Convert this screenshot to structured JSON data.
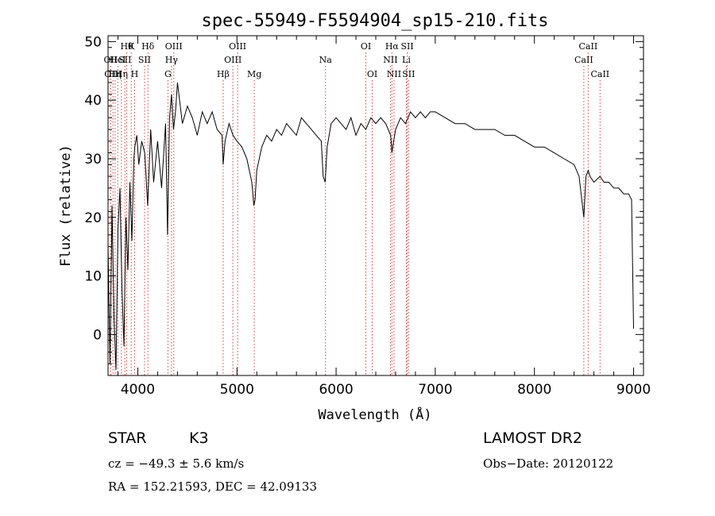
{
  "chart_data": {
    "type": "line",
    "title": "spec-55949-F5594904_sp15-210.fits",
    "xlabel": "Wavelength (Å)",
    "ylabel": "Flux (relative)",
    "xlim": [
      3700,
      9100
    ],
    "ylim": [
      -7,
      51
    ],
    "x_ticks": [
      4000,
      5000,
      6000,
      7000,
      8000,
      9000
    ],
    "y_ticks": [
      0,
      10,
      20,
      30,
      40,
      50
    ],
    "grid": false,
    "line_color": "#000000",
    "marker_color": "#d04040",
    "series": [
      {
        "x": [
          3700,
          3720,
          3740,
          3760,
          3780,
          3800,
          3820,
          3840,
          3860,
          3880,
          3900,
          3920,
          3940,
          3960,
          3970,
          3990,
          4010,
          4040,
          4070,
          4100,
          4130,
          4160,
          4200,
          4240,
          4280,
          4300,
          4320,
          4340,
          4360,
          4380,
          4400,
          4450,
          4500,
          4550,
          4600,
          4650,
          4700,
          4750,
          4800,
          4850,
          4861,
          4880,
          4920,
          4960,
          5000,
          5050,
          5100,
          5150,
          5170,
          5183,
          5200,
          5250,
          5300,
          5350,
          5400,
          5450,
          5500,
          5550,
          5600,
          5650,
          5700,
          5750,
          5800,
          5850,
          5870,
          5890,
          5910,
          5950,
          6000,
          6050,
          6100,
          6150,
          6200,
          6250,
          6300,
          6350,
          6400,
          6450,
          6500,
          6550,
          6563,
          6580,
          6600,
          6650,
          6700,
          6750,
          6800,
          6850,
          6900,
          6950,
          7000,
          7100,
          7200,
          7300,
          7400,
          7500,
          7600,
          7700,
          7800,
          7900,
          8000,
          8100,
          8200,
          8300,
          8400,
          8450,
          8498,
          8520,
          8542,
          8560,
          8600,
          8662,
          8700,
          8750,
          8800,
          8850,
          8900,
          8950,
          8980,
          9000
        ],
        "y": [
          15,
          -5,
          22,
          3,
          -6,
          18,
          25,
          8,
          -2,
          20,
          11,
          26,
          16,
          30,
          32,
          34,
          29,
          33,
          31,
          22,
          35,
          26,
          33,
          25,
          36,
          17,
          37,
          41,
          35,
          38,
          43,
          36,
          39,
          37,
          34,
          38,
          36,
          38,
          35,
          34,
          29,
          33,
          36,
          34,
          33,
          32,
          30,
          26,
          22,
          23,
          28,
          32,
          34,
          33,
          35,
          34,
          36,
          35,
          34,
          37,
          36,
          35,
          34,
          33,
          27,
          26,
          32,
          36,
          37,
          36,
          35,
          37,
          34,
          36,
          35,
          37,
          36,
          37,
          36,
          34,
          31,
          33,
          35,
          37,
          36,
          38,
          37,
          38,
          37,
          38,
          38,
          37,
          36,
          36,
          35,
          35,
          35,
          34,
          34,
          33,
          32,
          32,
          31,
          30,
          29,
          27,
          20,
          27,
          28,
          27,
          26,
          27,
          26,
          26,
          25,
          25,
          24,
          24,
          23,
          1
        ]
      }
    ],
    "line_markers": [
      {
        "x": 3727,
        "label": "OII",
        "row": 1
      },
      {
        "x": 3750,
        "label": "OIII",
        "row": 2
      },
      {
        "x": 3771,
        "label": "Hη",
        "row": 2
      },
      {
        "x": 3798,
        "label": "HeI",
        "row": 1
      },
      {
        "x": 3835,
        "label": "Hη",
        "row": 2
      },
      {
        "x": 3870,
        "label": "SII",
        "row": 1
      },
      {
        "x": 3889,
        "label": "Hθ",
        "row": 0
      },
      {
        "x": 3934,
        "label": "K",
        "row": 0
      },
      {
        "x": 3968,
        "label": "H",
        "row": 2
      },
      {
        "x": 4068,
        "label": "SII",
        "row": 1
      },
      {
        "x": 4102,
        "label": "Hδ",
        "row": 0
      },
      {
        "x": 4304,
        "label": "G",
        "row": 2
      },
      {
        "x": 4340,
        "label": "Hγ",
        "row": 1
      },
      {
        "x": 4363,
        "label": "OIII",
        "row": 0
      },
      {
        "x": 4861,
        "label": "Hβ",
        "row": 2
      },
      {
        "x": 4959,
        "label": "OIII",
        "row": 1
      },
      {
        "x": 5007,
        "label": "OIII",
        "row": 0
      },
      {
        "x": 5175,
        "label": "Mg",
        "row": 2
      },
      {
        "x": 5893,
        "label": "Na",
        "row": 1
      },
      {
        "x": 6300,
        "label": "OI",
        "row": 0
      },
      {
        "x": 6364,
        "label": "OI",
        "row": 2
      },
      {
        "x": 6548,
        "label": "NII",
        "row": 1
      },
      {
        "x": 6563,
        "label": "Hα",
        "row": 0
      },
      {
        "x": 6584,
        "label": "NII",
        "row": 2
      },
      {
        "x": 6708,
        "label": "Li",
        "row": 1
      },
      {
        "x": 6717,
        "label": "SII",
        "row": 0
      },
      {
        "x": 6731,
        "label": "SII",
        "row": 2
      },
      {
        "x": 8498,
        "label": "CaII",
        "row": 1
      },
      {
        "x": 8542,
        "label": "CaII",
        "row": 0
      },
      {
        "x": 8662,
        "label": "CaII",
        "row": 2
      }
    ]
  },
  "info": {
    "object_class": "STAR",
    "subclass": "K3",
    "survey": "LAMOST DR2",
    "redshift": "cz = −49.3 ± 5.6 km/s",
    "obs_date": "Obs−Date: 20120122",
    "coords": "RA = 152.21593, DEC =  42.09133"
  }
}
